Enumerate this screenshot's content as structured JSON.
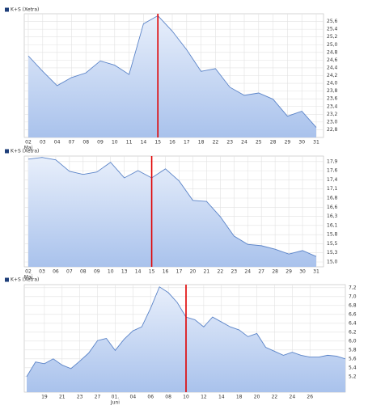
{
  "chart_data": [
    {
      "type": "line",
      "categories": [
        "02",
        "03",
        "04",
        "07",
        "08",
        "09",
        "10",
        "11",
        "14",
        "15",
        "16",
        "17",
        "18",
        "22",
        "23",
        "24",
        "25",
        "28",
        "29",
        "30",
        "31"
      ],
      "period_labels": [
        {
          "index": 0,
          "label": "Mai"
        }
      ],
      "series": [
        {
          "name": "K+S (Xetra)",
          "color": "#5b84c8",
          "values": [
            24.71,
            24.31,
            23.94,
            24.15,
            24.27,
            24.58,
            24.47,
            24.23,
            25.54,
            25.75,
            25.35,
            24.87,
            24.31,
            24.38,
            23.9,
            23.69,
            23.75,
            23.59,
            23.15,
            23.28,
            22.86
          ]
        }
      ],
      "ylim": [
        22.6,
        25.8
      ],
      "yticks": [
        {
          "value": 22.8,
          "label": "22,8"
        },
        {
          "value": 23.0,
          "label": "23,0"
        },
        {
          "value": 23.2,
          "label": "23,2"
        },
        {
          "value": 23.4,
          "label": "23,4"
        },
        {
          "value": 23.6,
          "label": "23,6"
        },
        {
          "value": 23.8,
          "label": "23,8"
        },
        {
          "value": 24.0,
          "label": "24,0"
        },
        {
          "value": 24.2,
          "label": "24,2"
        },
        {
          "value": 24.4,
          "label": "24,4"
        },
        {
          "value": 24.6,
          "label": "24,6"
        },
        {
          "value": 24.8,
          "label": "24,8"
        },
        {
          "value": 25.0,
          "label": "25,0"
        },
        {
          "value": 25.2,
          "label": "25,2"
        },
        {
          "value": 25.4,
          "label": "25,4"
        },
        {
          "value": 25.6,
          "label": "25,6"
        }
      ],
      "grid": true,
      "marker": {
        "index": 9,
        "color": "#e00000"
      }
    },
    {
      "type": "line",
      "categories": [
        "02",
        "03",
        "06",
        "07",
        "08",
        "09",
        "10",
        "13",
        "14",
        "15",
        "16",
        "17",
        "20",
        "21",
        "22",
        "23",
        "24",
        "27",
        "28",
        "29",
        "30",
        "31"
      ],
      "period_labels": [
        {
          "index": 0,
          "label": "Mai"
        }
      ],
      "series": [
        {
          "name": "K+S (Xetra)",
          "color": "#5b84c8",
          "values": [
            17.97,
            18.02,
            17.95,
            17.62,
            17.53,
            17.6,
            17.88,
            17.43,
            17.64,
            17.43,
            17.69,
            17.34,
            16.78,
            16.75,
            16.31,
            15.75,
            15.51,
            15.47,
            15.37,
            15.23,
            15.33,
            15.16
          ]
        }
      ],
      "ylim": [
        14.86,
        18.06
      ],
      "yticks": [
        {
          "value": 15.0,
          "label": "15,0"
        },
        {
          "value": 15.2636,
          "label": "15,3"
        },
        {
          "value": 15.5273,
          "label": "15,5"
        },
        {
          "value": 15.7909,
          "label": "15,8"
        },
        {
          "value": 16.0545,
          "label": "16,1"
        },
        {
          "value": 16.3182,
          "label": "16,3"
        },
        {
          "value": 16.5818,
          "label": "16,6"
        },
        {
          "value": 16.8455,
          "label": "16,8"
        },
        {
          "value": 17.1091,
          "label": "17,1"
        },
        {
          "value": 17.3727,
          "label": "17,4"
        },
        {
          "value": 17.6364,
          "label": "17,6"
        },
        {
          "value": 17.9,
          "label": "17,9"
        }
      ],
      "grid": true,
      "marker": {
        "index": 9,
        "color": "#e00000"
      }
    },
    {
      "type": "line",
      "categories": [
        null,
        null,
        "19",
        null,
        "21",
        null,
        "23",
        null,
        "27",
        null,
        "01.",
        null,
        "04",
        null,
        "06",
        null,
        "08",
        null,
        "10",
        null,
        "12",
        null,
        "14",
        null,
        "18",
        null,
        "20",
        null,
        "22",
        null,
        "24",
        null,
        "26",
        null,
        null,
        null,
        null
      ],
      "period_labels": [
        {
          "index": 10,
          "label": "Juni"
        }
      ],
      "series": [
        {
          "name": "K+S (Xetra)",
          "color": "#5b84c8",
          "values": [
            5.2,
            5.53,
            5.49,
            5.6,
            5.46,
            5.38,
            5.55,
            5.73,
            6.01,
            6.06,
            5.79,
            6.04,
            6.23,
            6.32,
            6.74,
            7.22,
            7.09,
            6.87,
            6.54,
            6.48,
            6.32,
            6.54,
            6.43,
            6.32,
            6.25,
            6.1,
            6.17,
            5.86,
            5.77,
            5.68,
            5.75,
            5.68,
            5.64,
            5.64,
            5.68,
            5.66,
            5.6
          ]
        }
      ],
      "ylim": [
        4.85,
        7.27
      ],
      "yticks": [
        {
          "value": 5.2,
          "label": "5,2"
        },
        {
          "value": 5.4,
          "label": "5,4"
        },
        {
          "value": 5.6,
          "label": "5,6"
        },
        {
          "value": 5.8,
          "label": "5,8"
        },
        {
          "value": 6.0,
          "label": "6,0"
        },
        {
          "value": 6.2,
          "label": "6,2"
        },
        {
          "value": 6.4,
          "label": "6,4"
        },
        {
          "value": 6.6,
          "label": "6,6"
        },
        {
          "value": 6.8,
          "label": "6,8"
        },
        {
          "value": 7.0,
          "label": "7,0"
        },
        {
          "value": 7.2,
          "label": "7,2"
        }
      ],
      "grid": true,
      "marker": {
        "index": 18,
        "color": "#e00000"
      }
    }
  ]
}
